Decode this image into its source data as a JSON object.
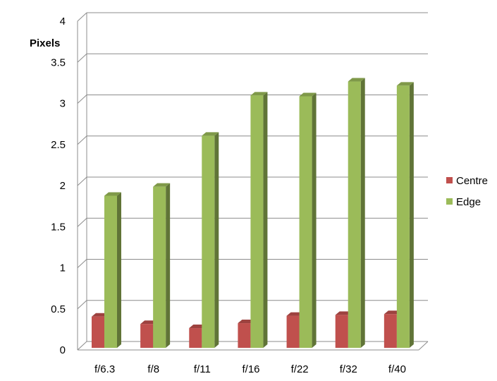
{
  "chart_data": {
    "type": "bar",
    "ylabel": "Pixels",
    "ylim": [
      0,
      4
    ],
    "yticks": [
      0,
      0.5,
      1,
      1.5,
      2,
      2.5,
      3,
      3.5,
      4
    ],
    "grid": true,
    "legend_position": "right",
    "categories": [
      "f/6.3",
      "f/8",
      "f/11",
      "f/16",
      "f/22",
      "f/32",
      "f/40"
    ],
    "series": [
      {
        "name": "Centre",
        "color": "#c0504d",
        "values": [
          0.38,
          0.29,
          0.24,
          0.3,
          0.39,
          0.4,
          0.41
        ]
      },
      {
        "name": "Edge",
        "color": "#9bbb59",
        "values": [
          1.85,
          1.96,
          2.58,
          3.07,
          3.06,
          3.24,
          3.19
        ]
      }
    ]
  }
}
